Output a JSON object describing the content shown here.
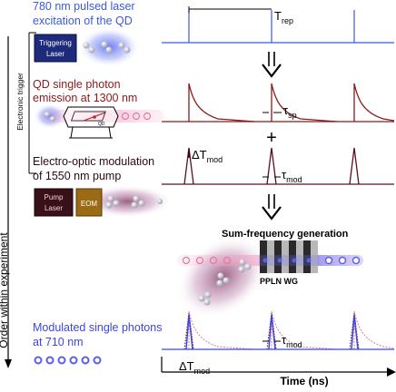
{
  "axis": {
    "y_label": "Order within experiment",
    "x_label": "Time (ns)"
  },
  "side_label": "Electronic trigger",
  "steps": [
    {
      "line1": "780 nm pulsed laser",
      "line2": "excitation of the QD"
    },
    {
      "line1": "QD single photon",
      "line2": "emission at 1300 nm"
    },
    {
      "line1": "Electro-optic modulation",
      "line2": "of 1550 nm pump"
    },
    {
      "line1": "Modulated single photons",
      "line2": "at 710 nm"
    }
  ],
  "devices": {
    "triggering_laser_line1": "Triggering",
    "triggering_laser_line2": "Laser",
    "pump_laser_line1": "Pump",
    "pump_laser_line2": "Laser",
    "eom": "EOM",
    "qd": "QD",
    "ppln": "PPLN WG",
    "sfg": "Sum-frequency generation"
  },
  "annotations": {
    "t_rep_main": "T",
    "t_rep_sub": "rep",
    "tau_sp_main": "τ",
    "tau_sp_sub": "sp",
    "delta_t_mod_main": "ΔT",
    "delta_t_mod_sub": "mod",
    "tau_mod_main": "τ",
    "tau_mod_sub": "mod",
    "plus": "+"
  },
  "colors": {
    "laser_blue": "#3a5bd8",
    "emission_red": "#8b1a1a",
    "pump_maroon": "#5a1220",
    "output_blue": "#3d46e0",
    "box_navy": "#1e2a7a",
    "box_maroon": "#3a1018",
    "box_gold": "#9a6a14"
  }
}
